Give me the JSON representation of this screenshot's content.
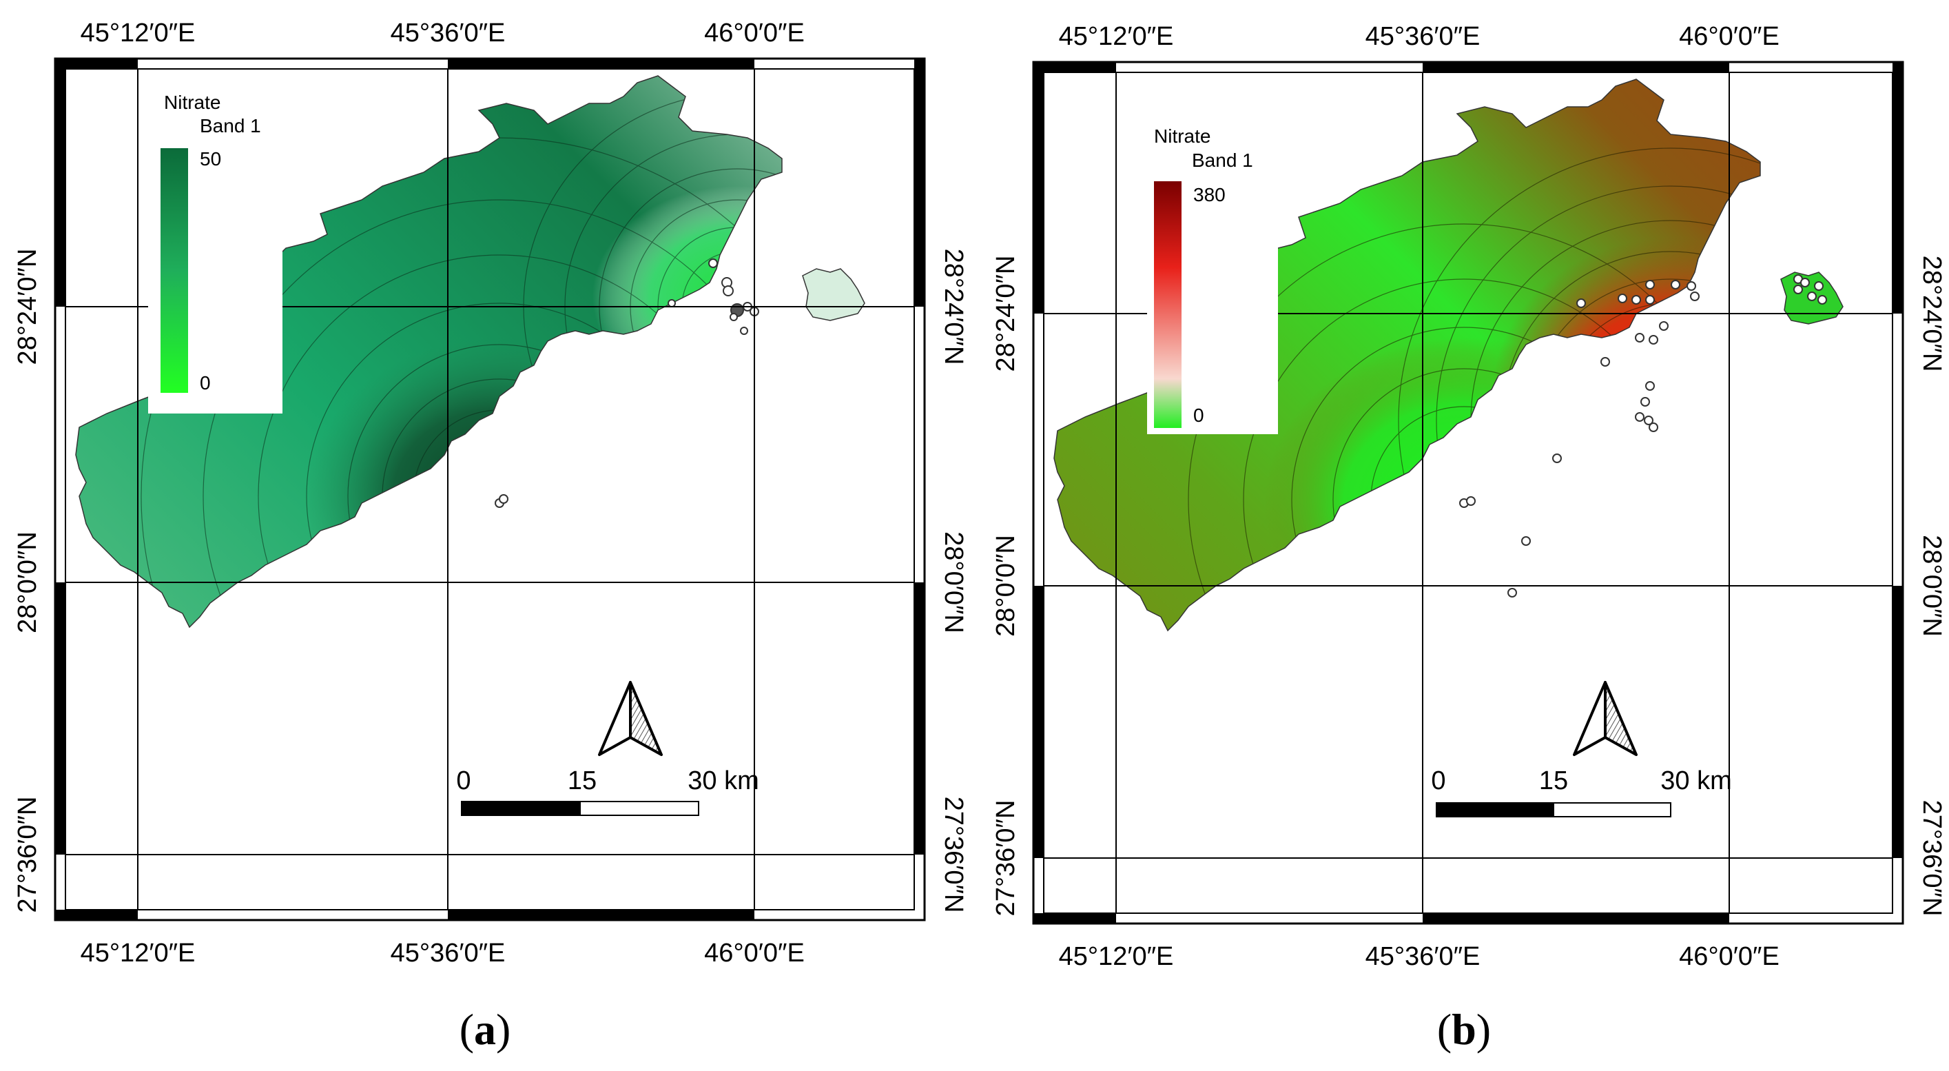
{
  "panels": [
    {
      "id": "a",
      "caption_open": "(",
      "caption_letter": "a",
      "caption_close": ")",
      "lon_labels": [
        "45°12′0″E",
        "45°36′0″E",
        "46°0′0″E"
      ],
      "lat_labels": [
        "28°24′0″N",
        "28°0′0″N",
        "27°36′0″N"
      ],
      "legend": {
        "title": "Nitrate",
        "band": "Band 1",
        "max_label": "50",
        "min_label": "0",
        "color_high": "#0b6b3a",
        "color_low": "#22ff22"
      },
      "scale": {
        "labels": [
          "0",
          "15",
          "30 km"
        ]
      },
      "colors": {
        "south_lobe": "#1f8a55",
        "south_hotspot": "#0c4a2a",
        "north_area": "#cfe8d6",
        "north_hotspot": "#2fd65a",
        "island": "#d7eede",
        "sample_point": "#9a6fa0"
      }
    },
    {
      "id": "b",
      "caption_open": "(",
      "caption_letter": "b",
      "caption_close": ")",
      "lon_labels": [
        "45°12′0″E",
        "45°36′0″E",
        "46°0′0″E"
      ],
      "lat_labels": [
        "28°24′0″N",
        "28°0′0″N",
        "27°36′0″N"
      ],
      "legend": {
        "title": "Nitrate",
        "band": "Band 1",
        "max_label": "380",
        "min_label": "0",
        "color_high": "#7a0000",
        "color_mid": "#f8d8cf",
        "color_low": "#22ee22"
      },
      "scale": {
        "labels": [
          "0",
          "15",
          "30 km"
        ]
      },
      "colors": {
        "south_lobe": "#6d8a12",
        "south_hotspot": "#22e81e",
        "north_area": "#9a4a10",
        "north_hotspot": "#e01a0a",
        "island": "#2ecf2a",
        "sample_point": "#ffffff"
      }
    }
  ],
  "north_arrow_label": "north-arrow"
}
